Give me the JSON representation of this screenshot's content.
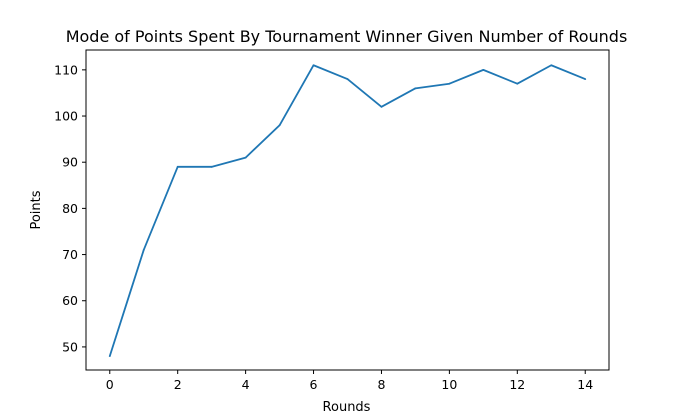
{
  "chart_data": {
    "type": "line",
    "title": "Mode of Points Spent By Tournament Winner Given Number of Rounds",
    "xlabel": "Rounds",
    "ylabel": "Points",
    "xlim": [
      -0.7,
      14.7
    ],
    "ylim": [
      45.0,
      114.3
    ],
    "xticks": [
      0,
      2,
      4,
      6,
      8,
      10,
      12,
      14
    ],
    "yticks": [
      50,
      60,
      70,
      80,
      90,
      100,
      110
    ],
    "grid": false,
    "line_color": "#1f77b4",
    "series": [
      {
        "x": [
          0,
          1,
          2,
          3,
          4,
          5,
          6,
          7,
          8,
          9,
          10,
          11,
          12,
          13,
          14
        ],
        "values": [
          48,
          71,
          89,
          89,
          91,
          98,
          111,
          108,
          102,
          106,
          107,
          110,
          107,
          111,
          108
        ]
      }
    ]
  }
}
